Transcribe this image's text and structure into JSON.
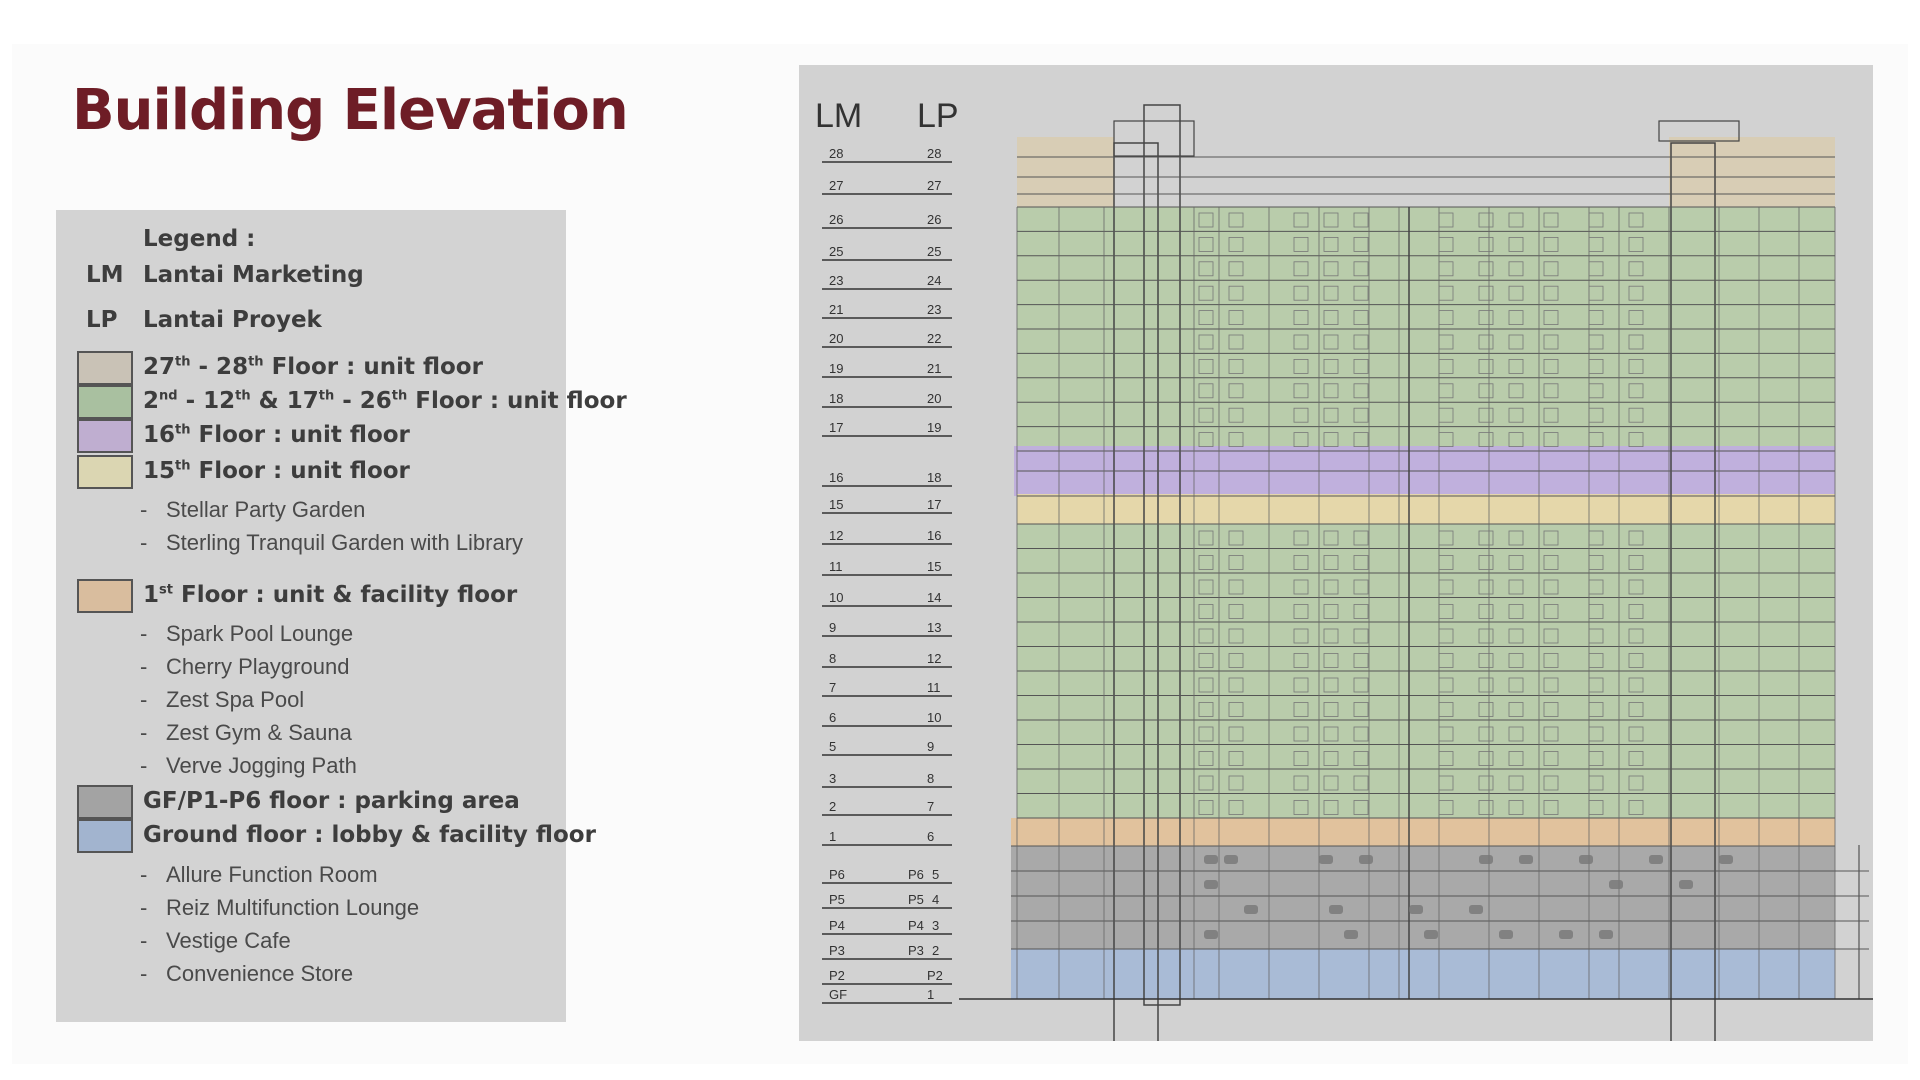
{
  "title": "Building Elevation",
  "legend": {
    "heading": "Legend :",
    "abbreviations": [
      {
        "code": "LM",
        "label": "Lantai Marketing"
      },
      {
        "code": "LP",
        "label": "Lantai Proyek"
      }
    ],
    "categories": [
      {
        "color": "#c9c2b6",
        "label_html": "27th - 28th Floor : unit floor",
        "parts": [
          "27",
          "th",
          " - 28",
          "th",
          " Floor : unit floor"
        ],
        "facilities": []
      },
      {
        "color": "#a9c0a0",
        "parts": [
          "2",
          "nd",
          " - 12",
          "th",
          " & 17",
          "th",
          " - 26",
          "th",
          " Floor : unit floor"
        ],
        "facilities": []
      },
      {
        "color": "#bfaed0",
        "parts": [
          "16",
          "th",
          " Floor : unit floor"
        ],
        "facilities": []
      },
      {
        "color": "#dbd6b2",
        "parts": [
          "15",
          "th",
          " Floor : unit floor"
        ],
        "facilities": [
          "Stellar Party Garden",
          "Sterling Tranquil Garden with Library"
        ]
      },
      {
        "color": "#d9bd9e",
        "parts": [
          "1",
          "st",
          " Floor : unit & facility floor"
        ],
        "facilities": [
          "Spark Pool Lounge",
          "Cherry Playground",
          "Zest Spa Pool",
          "Zest Gym & Sauna",
          "Verve Jogging Path"
        ]
      },
      {
        "color": "#a3a3a3",
        "parts": [
          "GF/P1-P6 floor : parking area"
        ],
        "facilities": []
      },
      {
        "color": "#a2b4cf",
        "parts": [
          "Ground floor : lobby & facility floor"
        ],
        "facilities": [
          "Allure Function Room",
          "Reiz Multifunction Lounge",
          "Vestige Cafe",
          "Convenience Store"
        ]
      }
    ]
  },
  "elevation": {
    "col_headers": {
      "lm": "LM",
      "lp": "LP"
    },
    "levels": [
      {
        "lm": "28",
        "lp": "28"
      },
      {
        "lm": "27",
        "lp": "27"
      },
      {
        "lm": "26",
        "lp": "26"
      },
      {
        "lm": "25",
        "lp": "25"
      },
      {
        "lm": "23",
        "lp": "24"
      },
      {
        "lm": "21",
        "lp": "23"
      },
      {
        "lm": "20",
        "lp": "22"
      },
      {
        "lm": "19",
        "lp": "21"
      },
      {
        "lm": "18",
        "lp": "20"
      },
      {
        "lm": "17",
        "lp": "19"
      },
      {
        "lm": "16",
        "lp": "18"
      },
      {
        "lm": "15",
        "lp": "17"
      },
      {
        "lm": "12",
        "lp": "16"
      },
      {
        "lm": "11",
        "lp": "15"
      },
      {
        "lm": "10",
        "lp": "14"
      },
      {
        "lm": "9",
        "lp": "13"
      },
      {
        "lm": "8",
        "lp": "12"
      },
      {
        "lm": "7",
        "lp": "11"
      },
      {
        "lm": "6",
        "lp": "10"
      },
      {
        "lm": "5",
        "lp": "9"
      },
      {
        "lm": "3",
        "lp": "8"
      },
      {
        "lm": "2",
        "lp": "7"
      },
      {
        "lm": "1",
        "lp": "6"
      },
      {
        "lm": "P6",
        "lp": "P6",
        "lp2": "5"
      },
      {
        "lm": "P5",
        "lp": "P5",
        "lp2": "4"
      },
      {
        "lm": "P4",
        "lp": "P4",
        "lp2": "3"
      },
      {
        "lm": "P3",
        "lp": "P3",
        "lp2": "2"
      },
      {
        "lm": "P2",
        "lp": "P2"
      },
      {
        "lm": "GF",
        "lp": "1"
      }
    ],
    "band_colors": {
      "roof": "#d9ccb0",
      "unit": "#b6cba6",
      "floor16": "#bfaedd",
      "floor15": "#e6d7a8",
      "floor1": "#e2c19a",
      "parking": "#a7a7a7",
      "lobby": "#a7b9d6"
    }
  }
}
